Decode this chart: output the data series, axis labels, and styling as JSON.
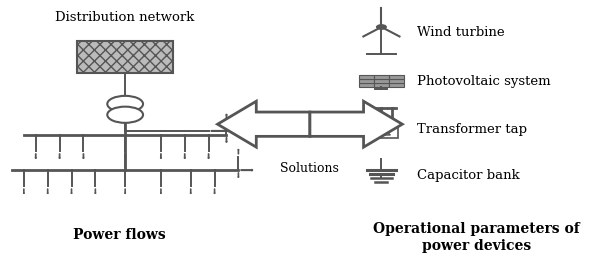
{
  "left_title": "Distribution network",
  "left_label": "Power flows",
  "right_label": "Operational parameters of\npower devices",
  "solutions_text": "Solutions",
  "legend_labels": [
    "Wind turbine",
    "Photovoltaic system",
    "Transformer tap",
    "Capacitor bank"
  ],
  "line_color": "#555555",
  "arrow_color": "#555555",
  "bg_color": "#ffffff",
  "text_color": "#000000",
  "box_hatch": "xxx",
  "fig_width": 5.96,
  "fig_height": 2.7,
  "dpi": 100
}
